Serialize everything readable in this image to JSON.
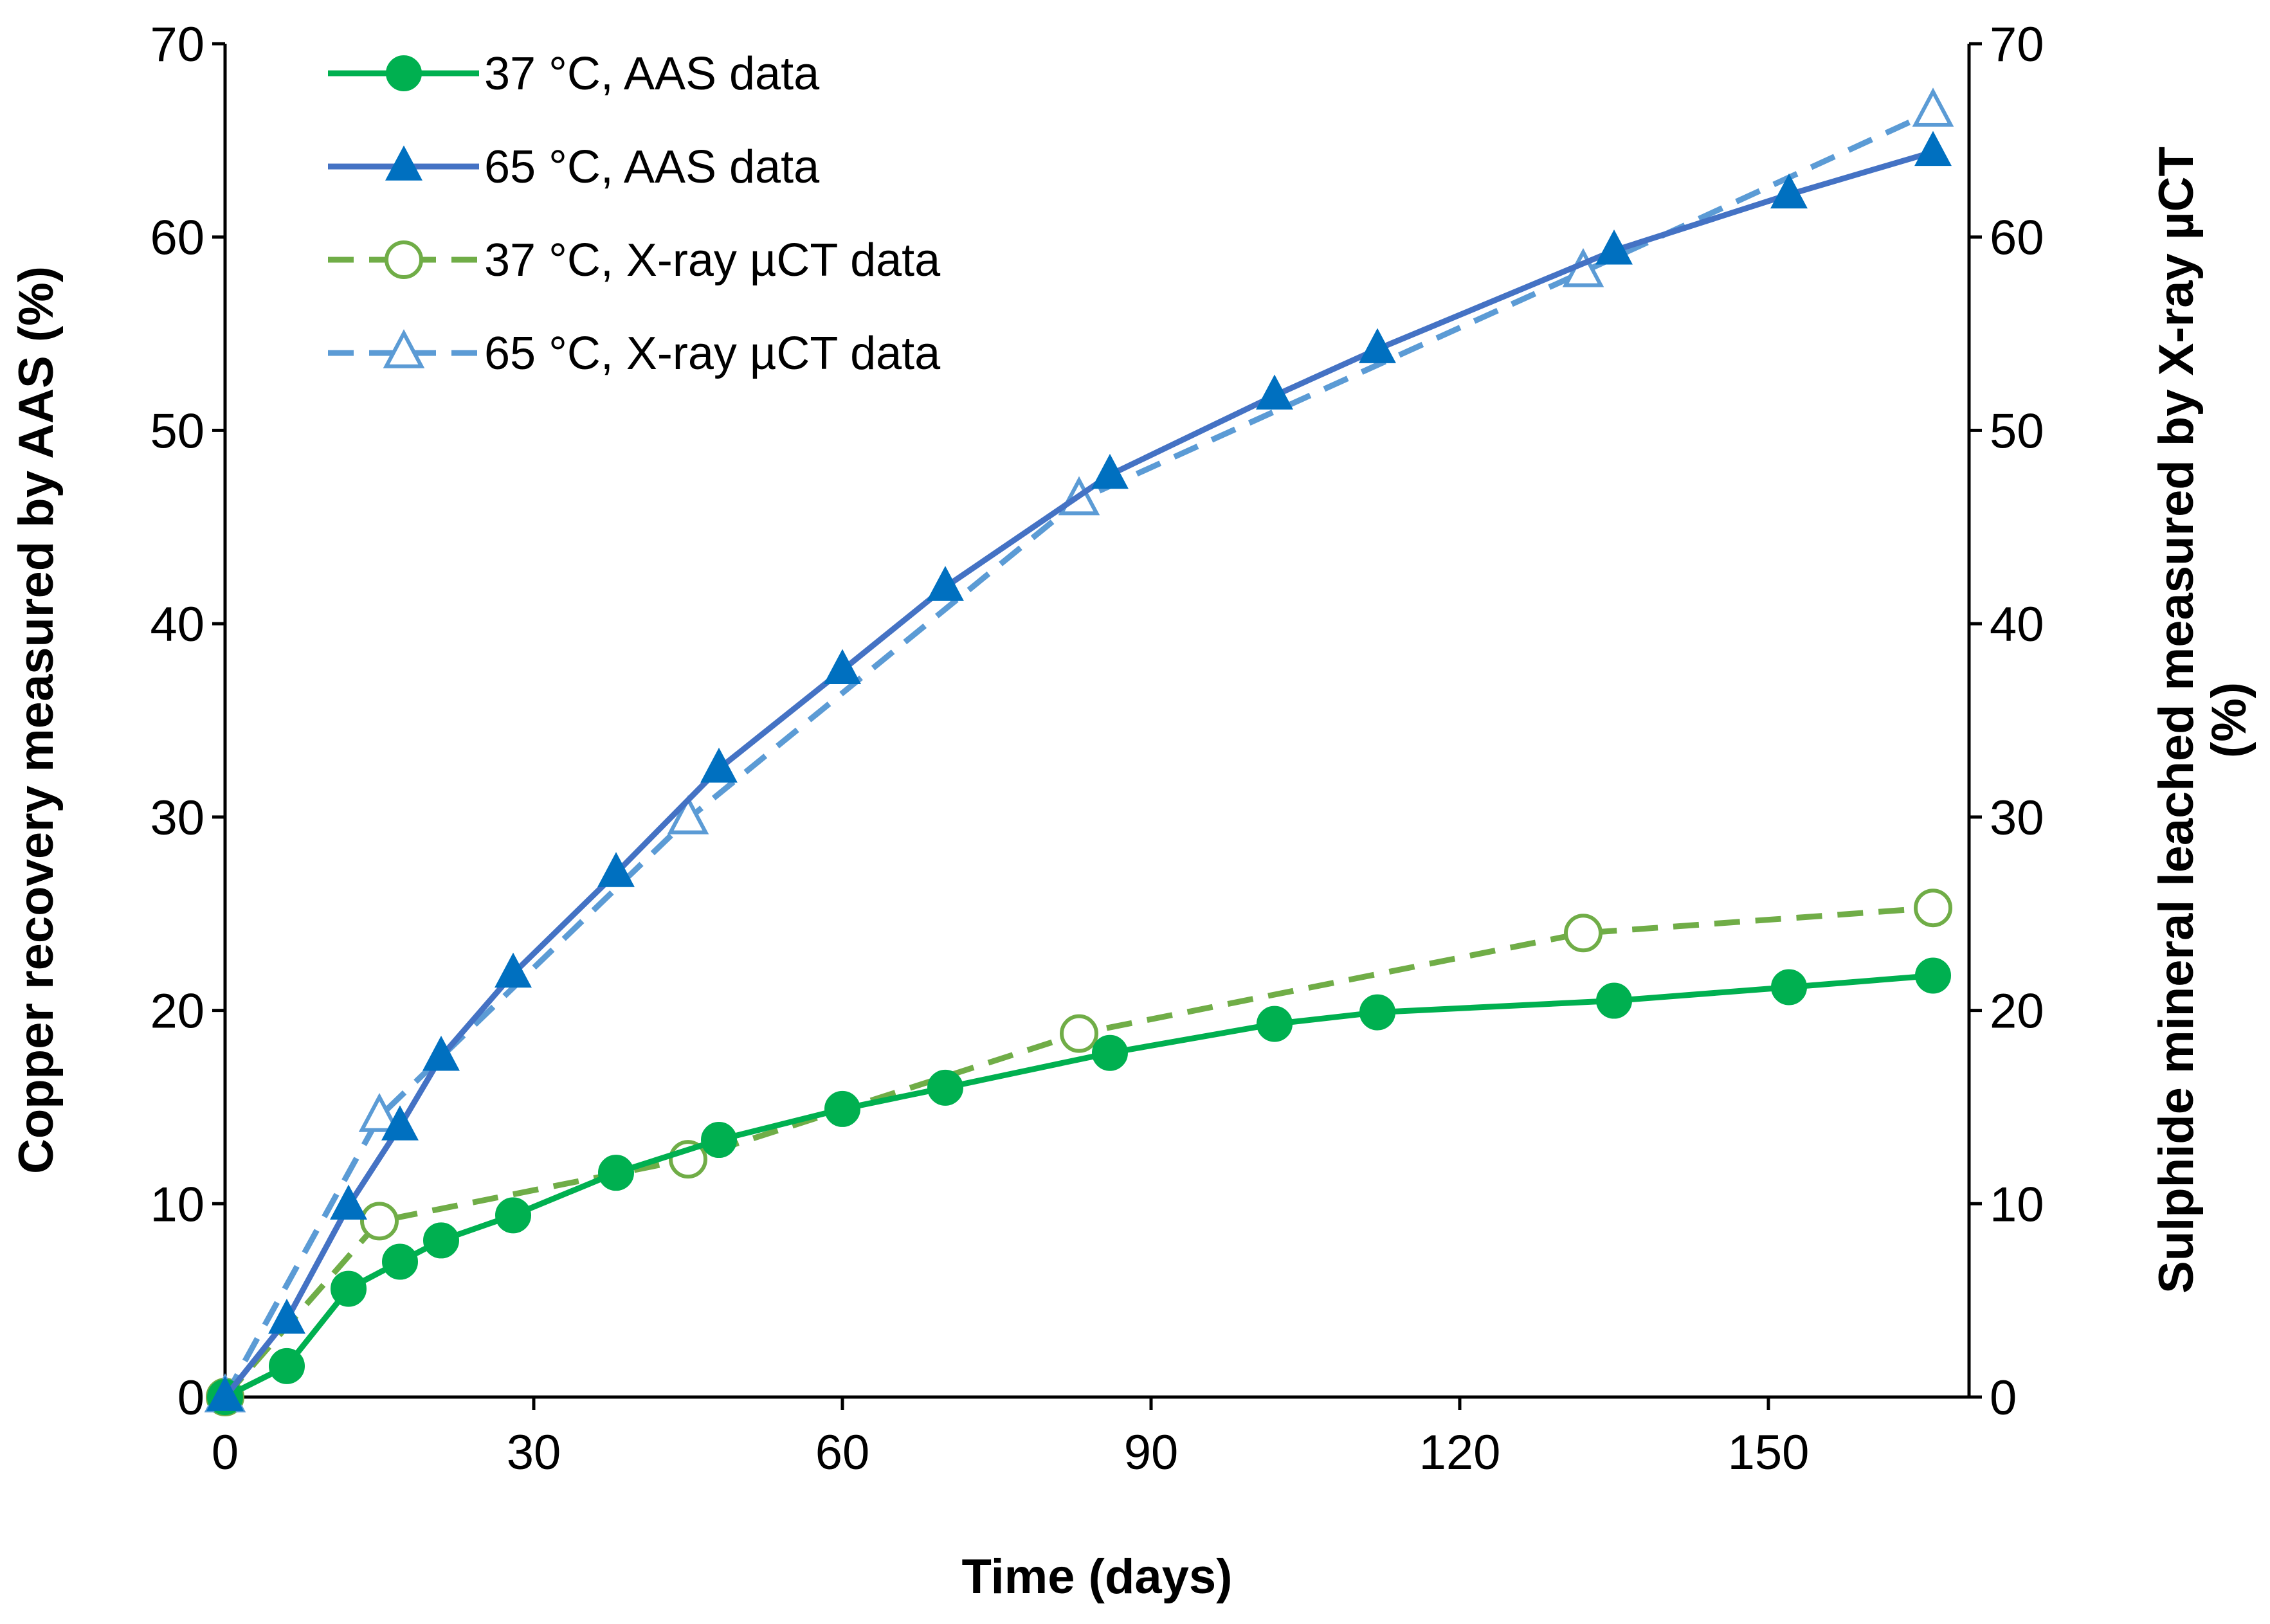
{
  "chart_data": {
    "type": "line",
    "title": "",
    "xlabel": "Time (days)",
    "ylabel_left": "Copper recovery measured by AAS (%)",
    "ylabel_right_line1": "Sulphide mineral leached measured by X-ray µCT",
    "ylabel_right_line2": "(%)",
    "xlim": [
      0,
      170
    ],
    "ylim": [
      0,
      70
    ],
    "xticks": [
      0,
      30,
      60,
      90,
      120,
      150
    ],
    "yticks": [
      0,
      10,
      20,
      30,
      40,
      50,
      60,
      70
    ],
    "grid": false,
    "legend_position": "top-left",
    "series": [
      {
        "name": "37 °C, AAS data",
        "color": "#00b050",
        "line_style": "solid",
        "marker": "filled-circle",
        "x": [
          0,
          6,
          12,
          17,
          21,
          28,
          38,
          48,
          60,
          70,
          86,
          102,
          112,
          135,
          152,
          166
        ],
        "y": [
          0,
          1.6,
          5.6,
          7.0,
          8.1,
          9.4,
          11.6,
          13.3,
          14.9,
          16.0,
          17.8,
          19.3,
          19.9,
          20.5,
          21.2,
          21.8
        ]
      },
      {
        "name": "65 °C, AAS data",
        "color": "#4472c4",
        "marker_color": "#0070c0",
        "line_style": "solid",
        "marker": "filled-triangle",
        "x": [
          0,
          6,
          12,
          17,
          21,
          28,
          38,
          48,
          60,
          70,
          86,
          102,
          112,
          135,
          152,
          166
        ],
        "y": [
          0,
          4.0,
          9.9,
          14.0,
          17.6,
          21.9,
          27.1,
          32.5,
          37.6,
          41.9,
          47.7,
          51.8,
          54.2,
          59.3,
          62.2,
          64.4
        ]
      },
      {
        "name": "37 °C, X-ray µCT data",
        "color": "#70ad47",
        "line_style": "dashed",
        "marker": "open-circle",
        "x": [
          0,
          15,
          45,
          83,
          132,
          166
        ],
        "y": [
          0,
          9.1,
          12.3,
          18.8,
          24.0,
          25.3
        ]
      },
      {
        "name": "65 °C, X-ray µCT data",
        "color": "#5b9bd5",
        "line_style": "dashed",
        "marker": "open-triangle",
        "x": [
          0,
          15,
          45,
          83,
          132,
          166
        ],
        "y": [
          0,
          14.5,
          29.9,
          46.4,
          58.2,
          66.5
        ]
      }
    ]
  }
}
